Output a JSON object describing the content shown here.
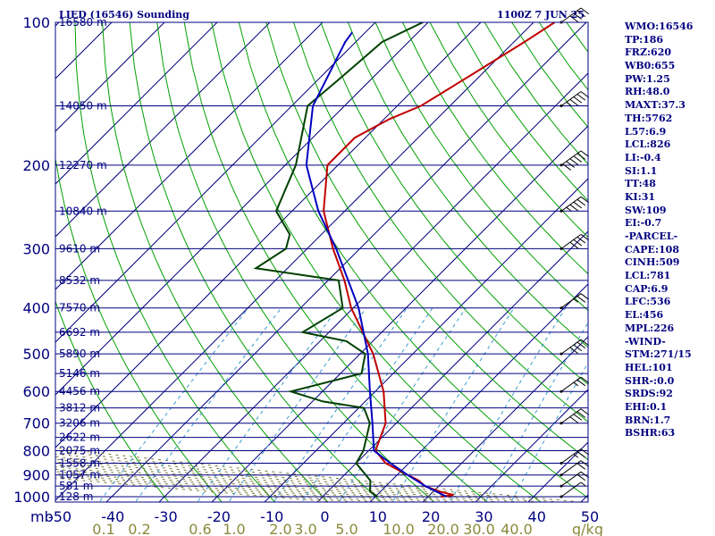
{
  "header": {
    "station_title": "LIED (16546) Sounding",
    "valid_time": "1100Z  7 JUN 25"
  },
  "indices": [
    "WMO:16546",
    "TP:186",
    "FRZ:620",
    "WB0:655",
    "PW:1.25",
    "RH:48.0",
    "MAXT:37.3",
    "TH:5762",
    "L57:6.9",
    "LCL:826",
    "LI:-0.4",
    "SI:1.1",
    "TT:48",
    "KI:31",
    "SW:109",
    "EI:-0.7",
    "-PARCEL-",
    "CAPE:108",
    "CINH:509",
    "LCL:781",
    "CAP:6.9",
    "LFC:536",
    "EL:456",
    "MPL:226",
    "-WIND-",
    "STM:271/15",
    "HEL:101",
    "SHR-:0.0",
    "SRDS:92",
    "EHI:0.1",
    "BRN:1.7",
    "BSHR:63"
  ],
  "chart_data": {
    "type": "line",
    "diagram": "skew-T log-P",
    "pressure_axis": {
      "unit_label": "mb",
      "range": [
        100,
        1050
      ],
      "log_scale": true,
      "tick_labels": [
        "100",
        "200",
        "300",
        "400",
        "500",
        "600",
        "700",
        "800",
        "900",
        "1000"
      ]
    },
    "temperature_axis": {
      "range": [
        -50,
        50
      ],
      "tick_labels": [
        "-50",
        "-40",
        "-30",
        "-20",
        "-10",
        "0",
        "10",
        "20",
        "30",
        "40",
        "50"
      ]
    },
    "mixing_ratio_axis": {
      "unit_label": "g/kg",
      "tick_labels": [
        "0.1",
        "0.2",
        "0.6",
        "1.0",
        "2.0",
        "3.0",
        "5.0",
        "10.0",
        "20.0",
        "30.0",
        "40.0"
      ]
    },
    "height_levels": [
      {
        "pressure": 100,
        "label": "16580 m"
      },
      {
        "pressure": 150,
        "label": "14050 m"
      },
      {
        "pressure": 200,
        "label": "12270 m"
      },
      {
        "pressure": 250,
        "label": "10840 m"
      },
      {
        "pressure": 300,
        "label": "9610 m"
      },
      {
        "pressure": 350,
        "label": "8532 m"
      },
      {
        "pressure": 400,
        "label": "7570 m"
      },
      {
        "pressure": 450,
        "label": "6692 m"
      },
      {
        "pressure": 500,
        "label": "5890 m"
      },
      {
        "pressure": 550,
        "label": "5146 m"
      },
      {
        "pressure": 600,
        "label": "4456 m"
      },
      {
        "pressure": 650,
        "label": "3812 m"
      },
      {
        "pressure": 700,
        "label": "3206 m"
      },
      {
        "pressure": 750,
        "label": "2622 m"
      },
      {
        "pressure": 800,
        "label": "2075 m"
      },
      {
        "pressure": 850,
        "label": "1558 m"
      },
      {
        "pressure": 900,
        "label": "1057 m"
      },
      {
        "pressure": 950,
        "label": "581 m"
      },
      {
        "pressure": 1000,
        "label": "128 m"
      }
    ],
    "grid": true,
    "series": [
      {
        "key": "temperature",
        "color": "#c00000",
        "points": [
          [
            1000,
            22.4
          ],
          [
            992,
            24.5
          ],
          [
            975,
            21.2
          ],
          [
            950,
            17.4
          ],
          [
            925,
            15.2
          ],
          [
            900,
            12.0
          ],
          [
            850,
            5.6
          ],
          [
            800,
            1.3
          ],
          [
            700,
            -2.0
          ],
          [
            600,
            -8.4
          ],
          [
            500,
            -17.5
          ],
          [
            400,
            -30.4
          ],
          [
            350,
            -36.9
          ],
          [
            300,
            -45.1
          ],
          [
            250,
            -54.0
          ],
          [
            200,
            -62.0
          ],
          [
            175,
            -62.0
          ],
          [
            160,
            -59.0
          ],
          [
            150,
            -55.5
          ],
          [
            130,
            -52.0
          ],
          [
            110,
            -48.0
          ],
          [
            100,
            -46.0
          ]
        ]
      },
      {
        "key": "dewpoint",
        "color": "#004000",
        "points": [
          [
            1000,
            10.4
          ],
          [
            975,
            8.0
          ],
          [
            925,
            6.0
          ],
          [
            850,
            0.0
          ],
          [
            800,
            -1.0
          ],
          [
            700,
            -5.0
          ],
          [
            650,
            -9.0
          ],
          [
            630,
            -18.0
          ],
          [
            600,
            -26.0
          ],
          [
            550,
            -16.0
          ],
          [
            500,
            -19.0
          ],
          [
            470,
            -25.0
          ],
          [
            450,
            -35.0
          ],
          [
            400,
            -32.0
          ],
          [
            350,
            -38.0
          ],
          [
            330,
            -56.0
          ],
          [
            300,
            -54.0
          ],
          [
            280,
            -56.0
          ],
          [
            250,
            -63.0
          ],
          [
            200,
            -68.0
          ],
          [
            150,
            -77.0
          ],
          [
            130,
            -76.0
          ],
          [
            110,
            -75.0
          ],
          [
            100,
            -71.0
          ]
        ]
      },
      {
        "key": "parcel",
        "color": "#0000c0",
        "points": [
          [
            1000,
            23.5
          ],
          [
            950,
            17.5
          ],
          [
            900,
            12.0
          ],
          [
            850,
            6.5
          ],
          [
            800,
            1.0
          ],
          [
            700,
            -4.5
          ],
          [
            600,
            -11.0
          ],
          [
            500,
            -18.5
          ],
          [
            400,
            -29.0
          ],
          [
            300,
            -44.5
          ],
          [
            250,
            -55.0
          ],
          [
            200,
            -66.0
          ],
          [
            150,
            -76.0
          ],
          [
            110,
            -82.0
          ],
          [
            105,
            -82.5
          ]
        ]
      }
    ],
    "wind_barbs": [
      {
        "pressure": 1000,
        "speed": 5
      },
      {
        "pressure": 950,
        "speed": 10
      },
      {
        "pressure": 900,
        "speed": 10
      },
      {
        "pressure": 850,
        "speed": 15
      },
      {
        "pressure": 700,
        "speed": 20
      },
      {
        "pressure": 600,
        "speed": 15
      },
      {
        "pressure": 500,
        "speed": 20
      },
      {
        "pressure": 400,
        "speed": 15
      },
      {
        "pressure": 300,
        "speed": 20
      },
      {
        "pressure": 250,
        "speed": 25
      },
      {
        "pressure": 200,
        "speed": 30
      },
      {
        "pressure": 150,
        "speed": 25
      },
      {
        "pressure": 100,
        "speed": 20
      }
    ],
    "colors": {
      "isobar": "#000080",
      "isotherm": "#000080",
      "dry_adiabat": "#00a000",
      "moist_adiabat": "#7a7a40",
      "mixing_ratio": "#3a9ad0",
      "axis_text": "#000080",
      "mixing_text": "#8a8a3a",
      "wind_barb": "#000000"
    }
  }
}
